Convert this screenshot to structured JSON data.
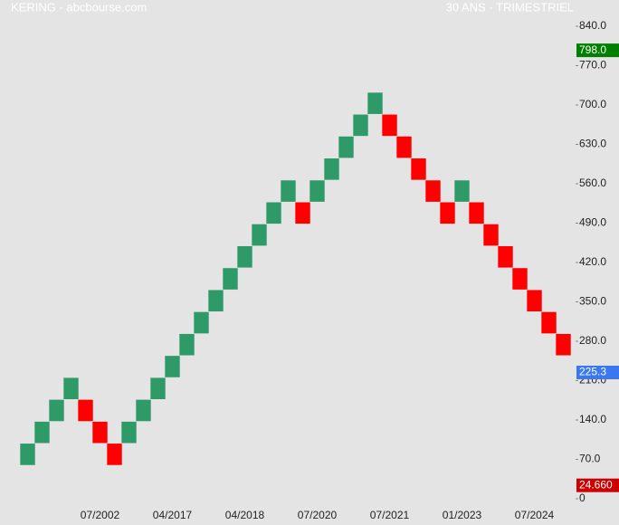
{
  "chart_data": {
    "type": "renko",
    "title": "KERING - abcbourse.com",
    "subtitle": "30 ANS - TRIMESTRIEL",
    "categories": [
      null,
      null,
      null,
      null,
      null,
      "07/2002",
      null,
      null,
      null,
      null,
      "04/2017",
      null,
      null,
      null,
      null,
      "04/2018",
      null,
      null,
      null,
      null,
      "07/2020",
      null,
      null,
      null,
      null,
      "07/2021",
      null,
      null,
      null,
      null,
      "01/2023",
      null,
      null,
      null,
      null,
      "07/2024",
      null,
      null
    ],
    "open": [
      59.5,
      98.5,
      137.5,
      176.5,
      176.5,
      137.5,
      98.5,
      98.5,
      137.5,
      176.5,
      215.5,
      254.5,
      293.5,
      332.5,
      371.5,
      410.5,
      449.5,
      488.5,
      527.5,
      527.5,
      527.5,
      566.5,
      605.5,
      644.5,
      683.5,
      683.5,
      644.5,
      605.5,
      566.5,
      527.5,
      527.5,
      527.5,
      488.5,
      449.5,
      410.5,
      371.5,
      332.5,
      293.5
    ],
    "close": [
      98.5,
      137.5,
      176.5,
      215.5,
      137.5,
      98.5,
      59.5,
      137.5,
      176.5,
      215.5,
      254.5,
      293.5,
      332.5,
      371.5,
      410.5,
      449.5,
      488.5,
      527.5,
      566.5,
      488.5,
      566.5,
      605.5,
      644.5,
      683.5,
      722.5,
      644.5,
      605.5,
      566.5,
      527.5,
      488.5,
      566.5,
      488.5,
      449.5,
      410.5,
      371.5,
      332.5,
      293.5,
      254.5
    ],
    "up_color": "#2e9a68",
    "down_color": "#ff0000",
    "ylim": [
      0,
      840
    ],
    "yticks": [
      {
        "value": 0,
        "label": "0"
      },
      {
        "value": 70,
        "label": "70.0"
      },
      {
        "value": 140,
        "label": "140.0"
      },
      {
        "value": 210,
        "label": "210.0"
      },
      {
        "value": 280,
        "label": "280.0"
      },
      {
        "value": 350,
        "label": "350.0"
      },
      {
        "value": 420,
        "label": "420.0"
      },
      {
        "value": 490,
        "label": "490.0"
      },
      {
        "value": 560,
        "label": "560.0"
      },
      {
        "value": 630,
        "label": "630.0"
      },
      {
        "value": 700,
        "label": "700.0"
      },
      {
        "value": 770,
        "label": "770.0"
      },
      {
        "value": 840,
        "label": "840.0"
      }
    ],
    "markers": [
      {
        "value": 798,
        "label": "798.0",
        "color": "#008000"
      },
      {
        "value": 225.3,
        "label": "225.3",
        "color": "#3a78f2"
      },
      {
        "value": 24.66,
        "label": "24.660",
        "color": "#cc0000"
      }
    ],
    "grid": false
  }
}
